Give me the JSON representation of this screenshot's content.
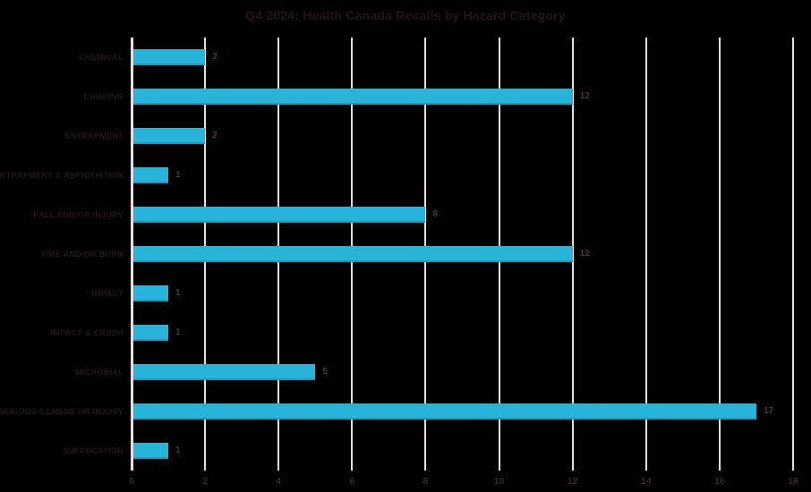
{
  "title": "Q4 2024: Health Canada Recalls by Hazard Category",
  "colors": {
    "background": "#000000",
    "bar": "#28B4D8",
    "gridline": "#E8DDE3",
    "title_text": "#241419",
    "category_text": "#241419",
    "value_text": "#4F2F3D",
    "tick_text": "#3A242E"
  },
  "chart_data": {
    "type": "bar",
    "orientation": "horizontal",
    "title": "Q4 2024: Health Canada Recalls by Hazard Category",
    "categories": [
      "CHEMICAL",
      "CHOKING",
      "ENTRAPMENT",
      "ENTRAPMENT & ASPHIXIATION",
      "FALL AND/OR INJURY",
      "FIRE AND/OR BURN",
      "IMPACT",
      "IMPACT & CRUSH",
      "MICROBIAL",
      "SERIOUS ILLNESS OR INJURY",
      "SUFFOCATION"
    ],
    "values": [
      2,
      12,
      2,
      1,
      8,
      12,
      1,
      1,
      5,
      17,
      1
    ],
    "data_labels": [
      2,
      12,
      2,
      1,
      8,
      12,
      1,
      1,
      5,
      17,
      1
    ],
    "xlabel": "",
    "ylabel": "",
    "xlim": [
      0,
      18
    ],
    "xticks": [
      0,
      2,
      4,
      6,
      8,
      10,
      12,
      14,
      16,
      18
    ],
    "grid": true,
    "legend": false
  }
}
